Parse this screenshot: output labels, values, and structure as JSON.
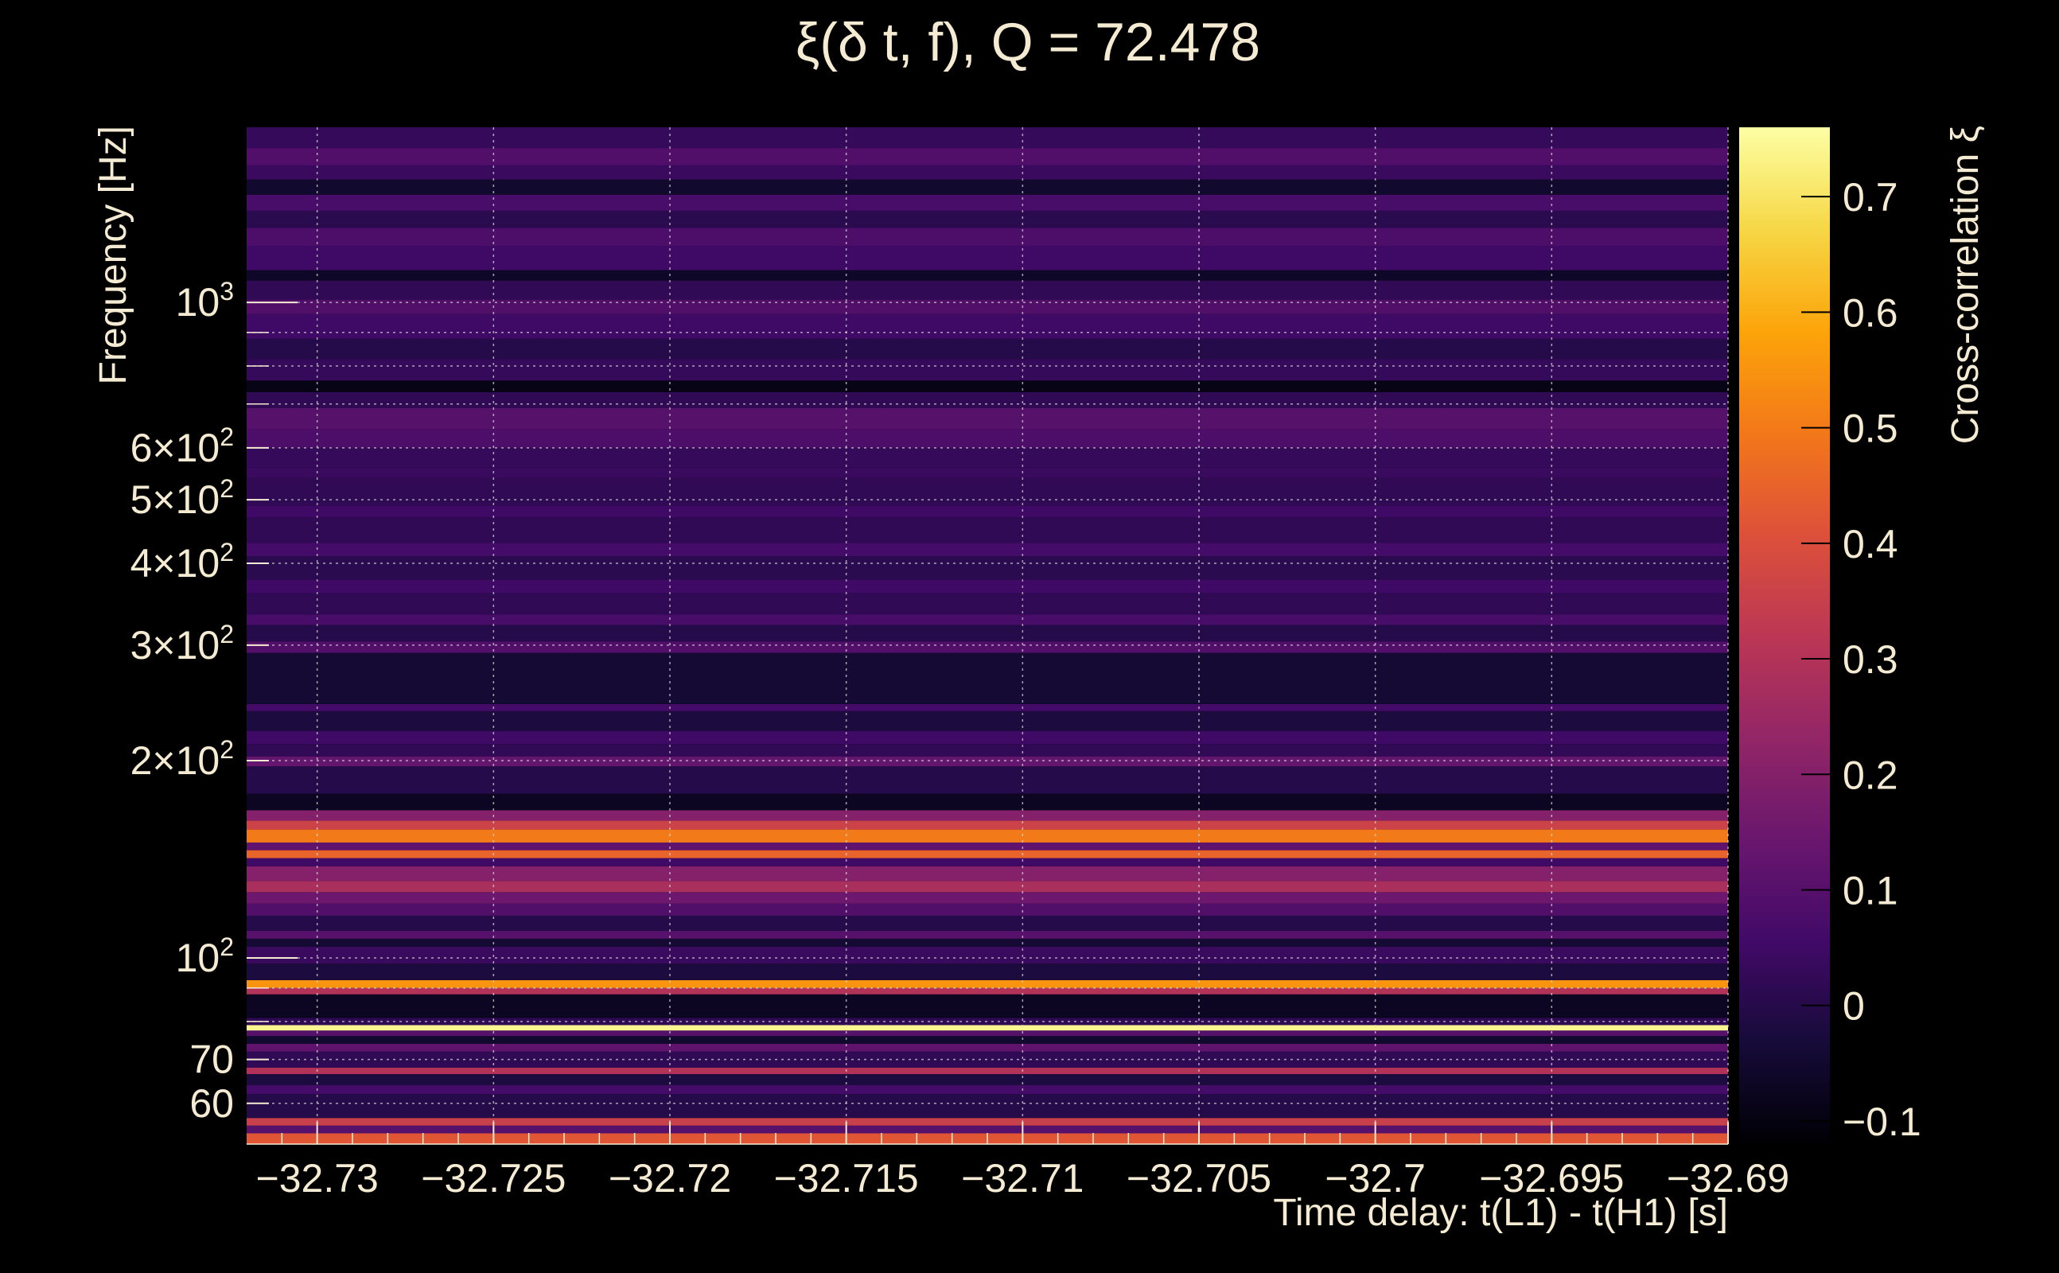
{
  "chart_data": {
    "type": "heatmap",
    "title": "ξ(δ t, f), Q = 72.478",
    "xlabel": "Time delay: t(L1) - t(H1) [s]",
    "ylabel": "Frequency [Hz]",
    "colorbar_label": "Cross-correlation ξ",
    "xlim": [
      -32.732,
      -32.69
    ],
    "ylim": [
      52,
      1850
    ],
    "y_scale": "log",
    "x_ticks": [
      {
        "value": -32.73,
        "label": "−32.73"
      },
      {
        "value": -32.725,
        "label": "−32.725"
      },
      {
        "value": -32.72,
        "label": "−32.72"
      },
      {
        "value": -32.715,
        "label": "−32.715"
      },
      {
        "value": -32.71,
        "label": "−32.71"
      },
      {
        "value": -32.705,
        "label": "−32.705"
      },
      {
        "value": -32.7,
        "label": "−32.7"
      },
      {
        "value": -32.695,
        "label": "−32.695"
      },
      {
        "value": -32.69,
        "label": "−32.69"
      }
    ],
    "y_ticks": [
      {
        "value": 60,
        "label": "60"
      },
      {
        "value": 70,
        "label": "70"
      },
      {
        "value": 100,
        "base": "10",
        "exp": "2"
      },
      {
        "value": 200,
        "base": "2×10",
        "exp": "2"
      },
      {
        "value": 300,
        "base": "3×10",
        "exp": "2"
      },
      {
        "value": 400,
        "base": "4×10",
        "exp": "2"
      },
      {
        "value": 500,
        "base": "5×10",
        "exp": "2"
      },
      {
        "value": 600,
        "base": "6×10",
        "exp": "2"
      },
      {
        "value": 1000,
        "base": "10",
        "exp": "3"
      }
    ],
    "y_minor_ticks": [
      80,
      90,
      700,
      800,
      900
    ],
    "colorbar": {
      "range": [
        -0.12,
        0.76
      ],
      "ticks": [
        {
          "value": -0.1,
          "label": "−0.1"
        },
        {
          "value": 0,
          "label": "0"
        },
        {
          "value": 0.1,
          "label": "0.1"
        },
        {
          "value": 0.2,
          "label": "0.2"
        },
        {
          "value": 0.3,
          "label": "0.3"
        },
        {
          "value": 0.4,
          "label": "0.4"
        },
        {
          "value": 0.5,
          "label": "0.5"
        },
        {
          "value": 0.6,
          "label": "0.6"
        },
        {
          "value": 0.7,
          "label": "0.7"
        }
      ],
      "colormap": "inferno"
    },
    "grid": true,
    "bands": [
      {
        "f_low": 52,
        "f_high": 54,
        "xi": 0.42
      },
      {
        "f_low": 54,
        "f_high": 55.5,
        "xi": 0.1
      },
      {
        "f_low": 55.5,
        "f_high": 57,
        "xi": 0.35
      },
      {
        "f_low": 57,
        "f_high": 62,
        "xi": 0.0
      },
      {
        "f_low": 62,
        "f_high": 64,
        "xi": 0.06
      },
      {
        "f_low": 64,
        "f_high": 66.5,
        "xi": -0.02
      },
      {
        "f_low": 66.5,
        "f_high": 68,
        "xi": 0.3
      },
      {
        "f_low": 68,
        "f_high": 72,
        "xi": 0.02
      },
      {
        "f_low": 72,
        "f_high": 74,
        "xi": 0.12
      },
      {
        "f_low": 74,
        "f_high": 76,
        "xi": -0.05
      },
      {
        "f_low": 76,
        "f_high": 77.5,
        "xi": 0.1
      },
      {
        "f_low": 77.5,
        "f_high": 79,
        "xi": 0.74
      },
      {
        "f_low": 79,
        "f_high": 81,
        "xi": 0.02
      },
      {
        "f_low": 81,
        "f_high": 88,
        "xi": -0.07
      },
      {
        "f_low": 88,
        "f_high": 90,
        "xi": 0.3
      },
      {
        "f_low": 90,
        "f_high": 92.5,
        "xi": 0.55
      },
      {
        "f_low": 92.5,
        "f_high": 98,
        "xi": -0.02
      },
      {
        "f_low": 98,
        "f_high": 104,
        "xi": 0.04
      },
      {
        "f_low": 104,
        "f_high": 107,
        "xi": -0.04
      },
      {
        "f_low": 107,
        "f_high": 110,
        "xi": 0.1
      },
      {
        "f_low": 110,
        "f_high": 116,
        "xi": 0.0
      },
      {
        "f_low": 116,
        "f_high": 121,
        "xi": 0.09
      },
      {
        "f_low": 121,
        "f_high": 126,
        "xi": 0.15
      },
      {
        "f_low": 126,
        "f_high": 131,
        "xi": 0.28
      },
      {
        "f_low": 131,
        "f_high": 138,
        "xi": 0.2
      },
      {
        "f_low": 138,
        "f_high": 142,
        "xi": 0.05
      },
      {
        "f_low": 142,
        "f_high": 146,
        "xi": 0.45
      },
      {
        "f_low": 146,
        "f_high": 150,
        "xi": 0.12
      },
      {
        "f_low": 150,
        "f_high": 157,
        "xi": 0.5
      },
      {
        "f_low": 157,
        "f_high": 162,
        "xi": 0.36
      },
      {
        "f_low": 162,
        "f_high": 168,
        "xi": 0.2
      },
      {
        "f_low": 168,
        "f_high": 178,
        "xi": -0.07
      },
      {
        "f_low": 178,
        "f_high": 196,
        "xi": 0.0
      },
      {
        "f_low": 196,
        "f_high": 203,
        "xi": 0.13
      },
      {
        "f_low": 203,
        "f_high": 212,
        "xi": 0.02
      },
      {
        "f_low": 212,
        "f_high": 222,
        "xi": 0.05
      },
      {
        "f_low": 222,
        "f_high": 238,
        "xi": -0.02
      },
      {
        "f_low": 238,
        "f_high": 244,
        "xi": 0.06
      },
      {
        "f_low": 244,
        "f_high": 292,
        "xi": -0.04
      },
      {
        "f_low": 292,
        "f_high": 304,
        "xi": 0.09
      },
      {
        "f_low": 304,
        "f_high": 322,
        "xi": 0.0
      },
      {
        "f_low": 322,
        "f_high": 334,
        "xi": 0.07
      },
      {
        "f_low": 334,
        "f_high": 360,
        "xi": 0.02
      },
      {
        "f_low": 360,
        "f_high": 378,
        "xi": 0.05
      },
      {
        "f_low": 378,
        "f_high": 410,
        "xi": 0.01
      },
      {
        "f_low": 410,
        "f_high": 430,
        "xi": 0.06
      },
      {
        "f_low": 430,
        "f_high": 470,
        "xi": 0.02
      },
      {
        "f_low": 470,
        "f_high": 490,
        "xi": 0.05
      },
      {
        "f_low": 490,
        "f_high": 540,
        "xi": 0.02
      },
      {
        "f_low": 540,
        "f_high": 560,
        "xi": 0.04
      },
      {
        "f_low": 560,
        "f_high": 600,
        "xi": 0.03
      },
      {
        "f_low": 600,
        "f_high": 640,
        "xi": 0.08
      },
      {
        "f_low": 640,
        "f_high": 690,
        "xi": 0.1
      },
      {
        "f_low": 690,
        "f_high": 730,
        "xi": 0.02
      },
      {
        "f_low": 730,
        "f_high": 760,
        "xi": -0.09
      },
      {
        "f_low": 760,
        "f_high": 820,
        "xi": 0.03
      },
      {
        "f_low": 820,
        "f_high": 880,
        "xi": 0.0
      },
      {
        "f_low": 880,
        "f_high": 960,
        "xi": 0.05
      },
      {
        "f_low": 960,
        "f_high": 1010,
        "xi": 0.09
      },
      {
        "f_low": 1010,
        "f_high": 1080,
        "xi": 0.02
      },
      {
        "f_low": 1080,
        "f_high": 1120,
        "xi": -0.06
      },
      {
        "f_low": 1120,
        "f_high": 1220,
        "xi": 0.05
      },
      {
        "f_low": 1220,
        "f_high": 1300,
        "xi": 0.08
      },
      {
        "f_low": 1300,
        "f_high": 1380,
        "xi": 0.01
      },
      {
        "f_low": 1380,
        "f_high": 1460,
        "xi": 0.07
      },
      {
        "f_low": 1460,
        "f_high": 1540,
        "xi": -0.05
      },
      {
        "f_low": 1540,
        "f_high": 1620,
        "xi": 0.04
      },
      {
        "f_low": 1620,
        "f_high": 1720,
        "xi": 0.09
      },
      {
        "f_low": 1720,
        "f_high": 1850,
        "xi": 0.03
      }
    ]
  }
}
